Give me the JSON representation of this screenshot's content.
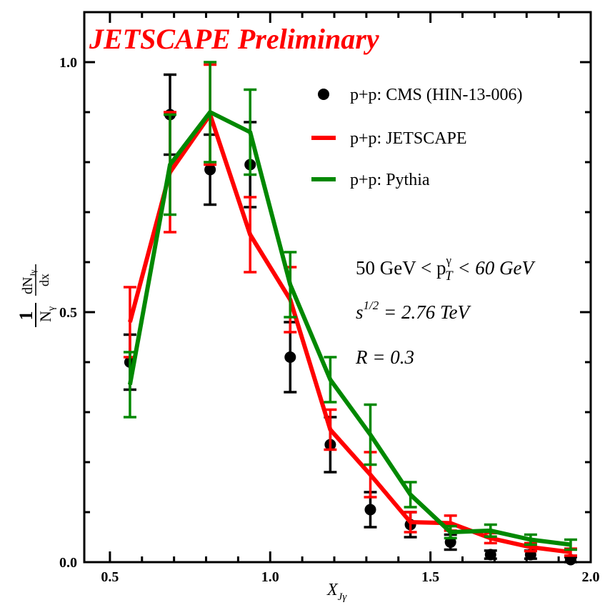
{
  "chart_data": {
    "type": "line",
    "title": "JETSCAPE Preliminary",
    "xlabel": "X",
    "xlabel_sub": "Jγ",
    "ylabel": {
      "one": "1",
      "N": "N",
      "N_sub": "γ",
      "dN": "dN",
      "dN_sub": "Jγ",
      "dx": "dx"
    },
    "xlim": [
      0.42,
      2.0
    ],
    "ylim": [
      0.0,
      1.1
    ],
    "x_ticks": [
      0.5,
      1.0,
      1.5,
      2.0
    ],
    "x_tick_labels": [
      "0.5",
      "1.0",
      "1.5",
      "2.0"
    ],
    "y_ticks": [
      0.0,
      0.5,
      1.0
    ],
    "y_tick_labels": [
      "0.0",
      "0.5",
      "1.0"
    ],
    "legend_position": "top-right",
    "series": [
      {
        "name": "p+p: CMS (HIN-13-006)",
        "style": "points",
        "color": "#000000",
        "x": [
          0.5625,
          0.6875,
          0.8125,
          0.9375,
          1.0625,
          1.1875,
          1.3125,
          1.4375,
          1.5625,
          1.6875,
          1.8125,
          1.9375
        ],
        "values": [
          0.4,
          0.895,
          0.785,
          0.795,
          0.41,
          0.235,
          0.105,
          0.075,
          0.04,
          0.015,
          0.015,
          0.005
        ],
        "errors": [
          0.055,
          0.08,
          0.07,
          0.085,
          0.07,
          0.055,
          0.035,
          0.025,
          0.015,
          0.008,
          0.008,
          0.005
        ]
      },
      {
        "name": "p+p: JETSCAPE",
        "style": "line",
        "color": "#ff0000",
        "x": [
          0.5625,
          0.6875,
          0.8125,
          0.9375,
          1.0625,
          1.1875,
          1.3125,
          1.4375,
          1.5625,
          1.6875,
          1.8125,
          1.9375
        ],
        "values": [
          0.48,
          0.78,
          0.895,
          0.655,
          0.525,
          0.265,
          0.175,
          0.08,
          0.078,
          0.048,
          0.03,
          0.02
        ],
        "errors": [
          0.07,
          0.12,
          0.1,
          0.075,
          0.065,
          0.04,
          0.045,
          0.02,
          0.015,
          0.01,
          0.008,
          0.007
        ]
      },
      {
        "name": "p+p: Pythia",
        "style": "line",
        "color": "#008800",
        "x": [
          0.5625,
          0.6875,
          0.8125,
          0.9375,
          1.0625,
          1.1875,
          1.3125,
          1.4375,
          1.5625,
          1.6875,
          1.8125,
          1.9375
        ],
        "values": [
          0.355,
          0.795,
          0.9,
          0.86,
          0.555,
          0.365,
          0.255,
          0.135,
          0.06,
          0.063,
          0.045,
          0.035
        ],
        "errors": [
          0.065,
          0.1,
          0.1,
          0.085,
          0.065,
          0.045,
          0.06,
          0.025,
          0.012,
          0.012,
          0.01,
          0.01
        ]
      }
    ],
    "annotations": {
      "line1_prefix": "50 GeV < p",
      "line1_sup": "γ",
      "line1_sub": "T",
      "line1_suffix": " < 60 GeV",
      "line2_base": "s",
      "line2_sup": "1/2",
      "line2_rest": " = 2.76 TeV",
      "line3": "R = 0.3"
    }
  },
  "colors": {
    "title": "#ff0000",
    "cms": "#000000",
    "jetscape": "#ff0000",
    "pythia": "#008800"
  }
}
